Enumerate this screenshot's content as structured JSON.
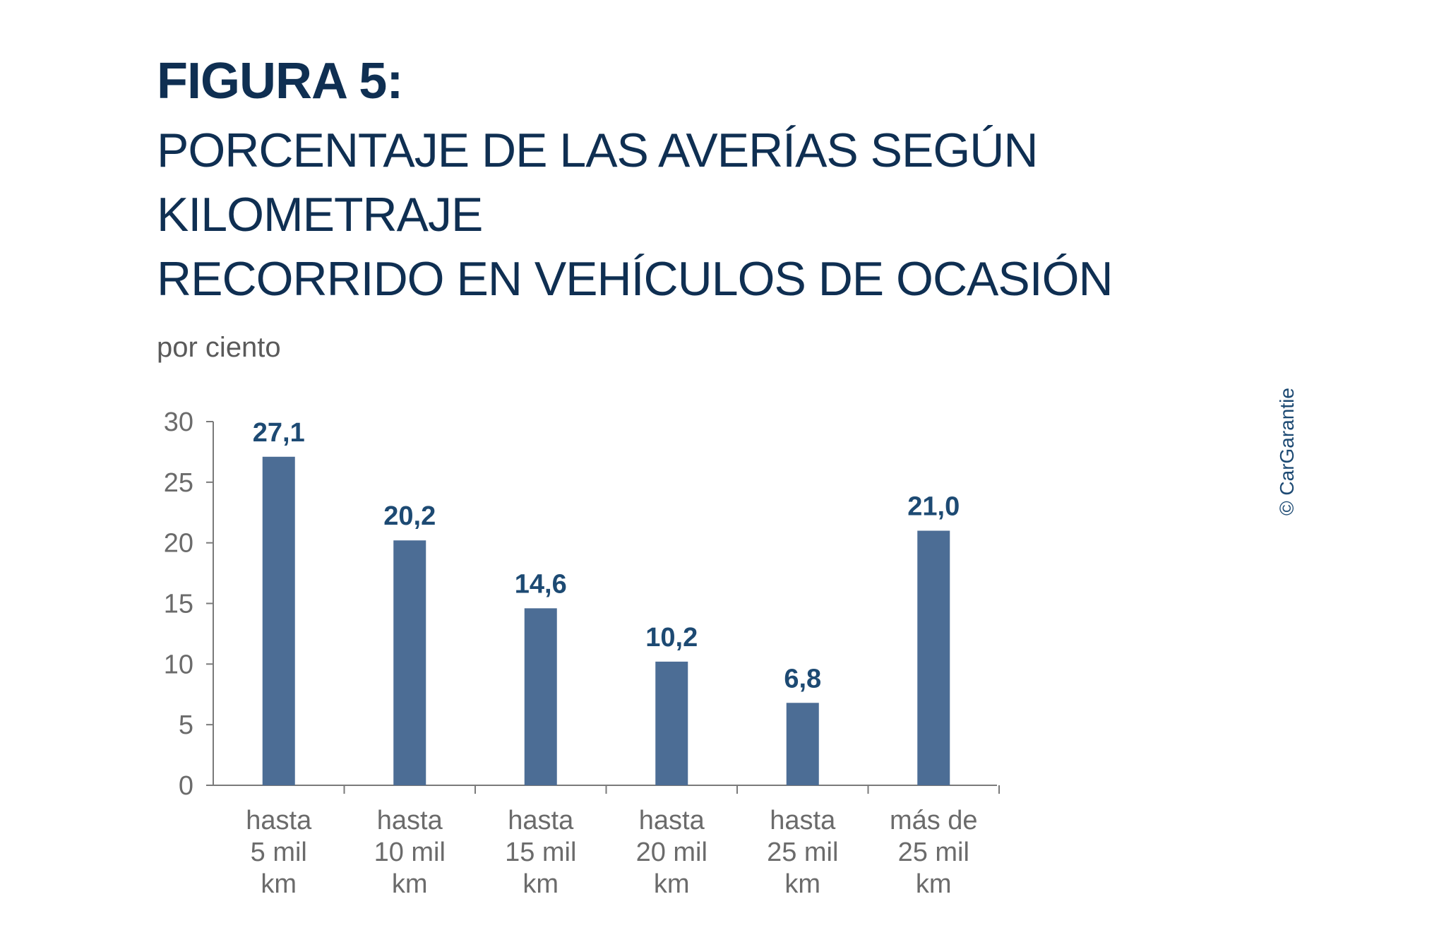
{
  "figure_label": "FIGURA 5:",
  "title_line1": "PORCENTAJE DE LAS AVERÍAS SEGÚN KILOMETRAJE",
  "title_line2": "RECORRIDO EN VEHÍCULOS DE OCASIÓN",
  "credit": "© CarGarantie",
  "chart_data": {
    "type": "bar",
    "ylabel": "por ciento",
    "xlabel": "",
    "ylim": [
      0,
      30
    ],
    "yticks": [
      0,
      5,
      10,
      15,
      20,
      25,
      30
    ],
    "categories": [
      [
        "hasta",
        "5 mil",
        "km"
      ],
      [
        "hasta",
        "10 mil",
        "km"
      ],
      [
        "hasta",
        "15 mil",
        "km"
      ],
      [
        "hasta",
        "20 mil",
        "km"
      ],
      [
        "hasta",
        "25 mil",
        "km"
      ],
      [
        "más de",
        "25 mil",
        "km"
      ]
    ],
    "values": [
      27.1,
      20.2,
      14.6,
      10.2,
      6.8,
      21.0
    ],
    "value_labels": [
      "27,1",
      "20,2",
      "14,6",
      "10,2",
      "6,8",
      "21,0"
    ],
    "bar_color": "#4c6d95",
    "label_color": "#1d4a73",
    "grid": false,
    "legend": "none"
  }
}
